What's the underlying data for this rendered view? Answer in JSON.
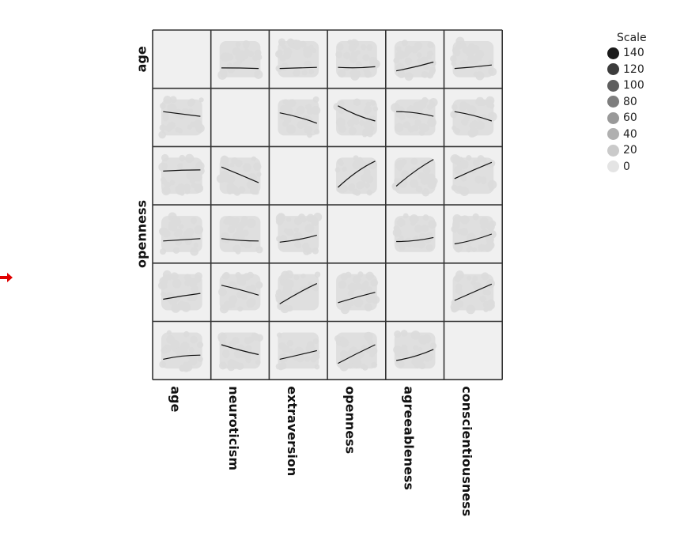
{
  "chart_data": {
    "type": "scatter",
    "variables": [
      "age",
      "neuroticism",
      "extraversion",
      "openness",
      "agreeableness",
      "conscientiousness"
    ],
    "row_labels": [
      "age",
      "",
      "",
      "openness",
      "",
      ""
    ],
    "col_labels": [
      "age",
      "neuroticism",
      "extraversion",
      "openness",
      "agreeableness",
      "conscientiousness"
    ],
    "diagonal_empty": true,
    "smooth_lines": [
      [
        null,
        [
          0.35,
          0.35,
          0.34
        ],
        [
          0.34,
          0.35,
          0.36
        ],
        [
          0.36,
          0.34,
          0.37
        ],
        [
          0.3,
          0.36,
          0.45
        ],
        [
          0.34,
          0.36,
          0.4
        ]
      ],
      [
        [
          0.6,
          0.56,
          0.52
        ],
        null,
        [
          0.58,
          0.52,
          0.4
        ],
        [
          0.7,
          0.52,
          0.44
        ],
        [
          0.6,
          0.6,
          0.52
        ],
        [
          0.6,
          0.55,
          0.44
        ]
      ],
      [
        [
          0.58,
          0.6,
          0.6
        ],
        [
          0.65,
          0.52,
          0.38
        ],
        null,
        [
          0.3,
          0.6,
          0.75
        ],
        [
          0.32,
          0.6,
          0.78
        ],
        [
          0.45,
          0.6,
          0.73
        ]
      ],
      [
        [
          0.38,
          0.4,
          0.42
        ],
        [
          0.42,
          0.38,
          0.38
        ],
        [
          0.36,
          0.39,
          0.48
        ],
        null,
        [
          0.37,
          0.37,
          0.44
        ],
        [
          0.33,
          0.38,
          0.5
        ]
      ],
      [
        [
          0.38,
          0.44,
          0.48
        ],
        [
          0.62,
          0.55,
          0.45
        ],
        [
          0.3,
          0.5,
          0.65
        ],
        [
          0.32,
          0.42,
          0.5
        ],
        null,
        [
          0.36,
          0.5,
          0.64
        ]
      ],
      [
        [
          0.35,
          0.42,
          0.42
        ],
        [
          0.6,
          0.5,
          0.43
        ],
        [
          0.35,
          0.42,
          0.5
        ],
        [
          0.28,
          0.45,
          0.6
        ],
        [
          0.33,
          0.38,
          0.52
        ],
        null
      ]
    ],
    "legend": {
      "title": "Scale",
      "entries": [
        {
          "label": "140",
          "color": "#1a1a1a"
        },
        {
          "label": "120",
          "color": "#3c3c3c"
        },
        {
          "label": "100",
          "color": "#5e5e5e"
        },
        {
          "label": "80",
          "color": "#7e7e7e"
        },
        {
          "label": "60",
          "color": "#999999"
        },
        {
          "label": "40",
          "color": "#b0b0b0"
        },
        {
          "label": "20",
          "color": "#cacaca"
        },
        {
          "label": "0",
          "color": "#e4e4e4"
        }
      ]
    },
    "colors": {
      "panel_bg": "#f0f0f0",
      "cloud": "#dcdcdc",
      "line": "#111111",
      "border": "#333333",
      "arrow": "#e00000"
    }
  }
}
